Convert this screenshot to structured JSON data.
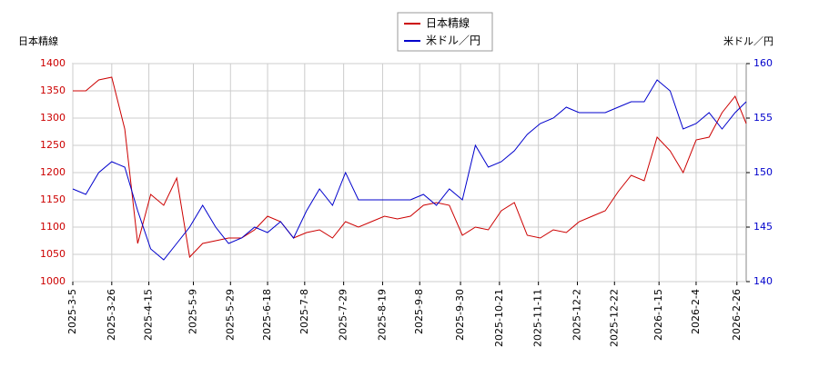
{
  "chart_data": {
    "type": "line",
    "y_label": "日本精線",
    "y2_label": "米ドル／円",
    "x": [
      "2025-3-5",
      "2025-3-12",
      "2025-3-19",
      "2025-3-26",
      "2025-4-2",
      "2025-4-9",
      "2025-4-16",
      "2025-4-23",
      "2025-4-30",
      "2025-5-7",
      "2025-5-14",
      "2025-5-21",
      "2025-5-28",
      "2025-6-4",
      "2025-6-11",
      "2025-6-18",
      "2025-6-25",
      "2025-7-2",
      "2025-7-9",
      "2025-7-16",
      "2025-7-23",
      "2025-7-30",
      "2025-8-6",
      "2025-8-13",
      "2025-8-20",
      "2025-8-27",
      "2025-9-3",
      "2025-9-10",
      "2025-9-17",
      "2025-9-24",
      "2025-10-1",
      "2025-10-8",
      "2025-10-15",
      "2025-10-22",
      "2025-10-29",
      "2025-11-5",
      "2025-11-12",
      "2025-11-19",
      "2025-11-26",
      "2025-12-3",
      "2025-12-10",
      "2025-12-17",
      "2025-12-24",
      "2025-12-31",
      "2026-1-7",
      "2026-1-14",
      "2026-1-21",
      "2026-1-28",
      "2026-2-4",
      "2026-2-11",
      "2026-2-18",
      "2026-2-25",
      "2026-3-3"
    ],
    "series": [
      {
        "name": "日本精線",
        "color": "#cc0000",
        "axis": "y",
        "values": [
          1350,
          1350,
          1370,
          1375,
          1280,
          1070,
          1160,
          1140,
          1190,
          1045,
          1070,
          1075,
          1080,
          1080,
          1095,
          1120,
          1110,
          1080,
          1090,
          1095,
          1080,
          1110,
          1100,
          1110,
          1120,
          1115,
          1120,
          1140,
          1145,
          1140,
          1085,
          1100,
          1095,
          1130,
          1145,
          1085,
          1080,
          1095,
          1090,
          1110,
          1120,
          1130,
          1165,
          1195,
          1185,
          1265,
          1240,
          1200,
          1260,
          1265,
          1310,
          1340,
          1290
        ]
      },
      {
        "name": "米ドル／円",
        "color": "#0000cc",
        "axis": "y2",
        "values": [
          148.5,
          148,
          150,
          151,
          150.5,
          146.5,
          143,
          142,
          143.5,
          145,
          147,
          145,
          143.5,
          144,
          145,
          144.5,
          145.5,
          144,
          146.5,
          148.5,
          147,
          150,
          147.5,
          147.5,
          147.5,
          147.5,
          147.5,
          148,
          147,
          148.5,
          147.5,
          152.5,
          150.5,
          151,
          152,
          153.5,
          154.5,
          155,
          156,
          155.5,
          155.5,
          155.5,
          156,
          156.5,
          156.5,
          158.5,
          157.5,
          154,
          154.5,
          155.5,
          154,
          155.5,
          156.5
        ]
      }
    ],
    "xlim": [
      "2025-3-5",
      "2026-3-3"
    ],
    "xticks": [
      "2025-3-5",
      "2025-3-26",
      "2025-4-15",
      "2025-5-9",
      "2025-5-29",
      "2025-6-18",
      "2025-7-8",
      "2025-7-29",
      "2025-8-19",
      "2025-9-8",
      "2025-9-30",
      "2025-10-21",
      "2025-11-11",
      "2025-12-2",
      "2025-12-22",
      "2026-1-15",
      "2026-2-4",
      "2026-2-26"
    ],
    "ylim": [
      1000,
      1400
    ],
    "yticks": [
      1000,
      1050,
      1100,
      1150,
      1200,
      1250,
      1300,
      1350,
      1400
    ],
    "y2lim": [
      140,
      160
    ],
    "y2ticks": [
      140,
      145,
      150,
      155,
      160
    ],
    "grid": true
  }
}
